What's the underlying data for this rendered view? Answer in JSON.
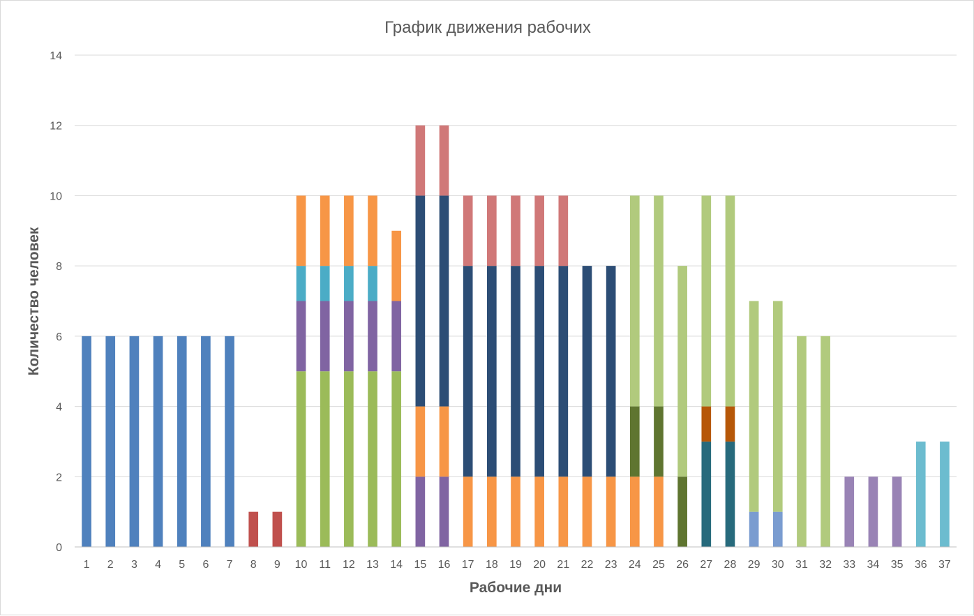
{
  "chart_data": {
    "type": "bar",
    "stacked": true,
    "title": "График движения рабочих",
    "xlabel": "Рабочие дни",
    "ylabel": "Количество человек",
    "ylim": [
      0,
      14
    ],
    "yticks": [
      0,
      2,
      4,
      6,
      8,
      10,
      12,
      14
    ],
    "grid": true,
    "legend": "none",
    "categories": [
      "1",
      "2",
      "3",
      "4",
      "5",
      "6",
      "7",
      "8",
      "9",
      "10",
      "11",
      "12",
      "13",
      "14",
      "15",
      "16",
      "17",
      "18",
      "19",
      "20",
      "21",
      "22",
      "23",
      "24",
      "25",
      "26",
      "27",
      "28",
      "29",
      "30",
      "31",
      "32",
      "33",
      "34",
      "35",
      "36",
      "37"
    ],
    "bars": [
      [
        {
          "v": 6,
          "c": "#4f81bd"
        }
      ],
      [
        {
          "v": 6,
          "c": "#4f81bd"
        }
      ],
      [
        {
          "v": 6,
          "c": "#4f81bd"
        }
      ],
      [
        {
          "v": 6,
          "c": "#4f81bd"
        }
      ],
      [
        {
          "v": 6,
          "c": "#4f81bd"
        }
      ],
      [
        {
          "v": 6,
          "c": "#4f81bd"
        }
      ],
      [
        {
          "v": 6,
          "c": "#4f81bd"
        }
      ],
      [
        {
          "v": 1,
          "c": "#c0504d"
        }
      ],
      [
        {
          "v": 1,
          "c": "#c0504d"
        }
      ],
      [
        {
          "v": 5,
          "c": "#9bbb59"
        },
        {
          "v": 2,
          "c": "#8064a2"
        },
        {
          "v": 1,
          "c": "#4bacc6"
        },
        {
          "v": 2,
          "c": "#f79646"
        }
      ],
      [
        {
          "v": 5,
          "c": "#9bbb59"
        },
        {
          "v": 2,
          "c": "#8064a2"
        },
        {
          "v": 1,
          "c": "#4bacc6"
        },
        {
          "v": 2,
          "c": "#f79646"
        }
      ],
      [
        {
          "v": 5,
          "c": "#9bbb59"
        },
        {
          "v": 2,
          "c": "#8064a2"
        },
        {
          "v": 1,
          "c": "#4bacc6"
        },
        {
          "v": 2,
          "c": "#f79646"
        }
      ],
      [
        {
          "v": 5,
          "c": "#9bbb59"
        },
        {
          "v": 2,
          "c": "#8064a2"
        },
        {
          "v": 1,
          "c": "#4bacc6"
        },
        {
          "v": 2,
          "c": "#f79646"
        }
      ],
      [
        {
          "v": 5,
          "c": "#9bbb59"
        },
        {
          "v": 2,
          "c": "#8064a2"
        },
        {
          "v": 2,
          "c": "#f79646"
        }
      ],
      [
        {
          "v": 2,
          "c": "#8064a2"
        },
        {
          "v": 2,
          "c": "#f79646"
        },
        {
          "v": 6,
          "c": "#2c4d75"
        },
        {
          "v": 2,
          "c": "#d07878"
        }
      ],
      [
        {
          "v": 2,
          "c": "#8064a2"
        },
        {
          "v": 2,
          "c": "#f79646"
        },
        {
          "v": 6,
          "c": "#2c4d75"
        },
        {
          "v": 2,
          "c": "#d07878"
        }
      ],
      [
        {
          "v": 2,
          "c": "#f79646"
        },
        {
          "v": 6,
          "c": "#2c4d75"
        },
        {
          "v": 2,
          "c": "#d07878"
        }
      ],
      [
        {
          "v": 2,
          "c": "#f79646"
        },
        {
          "v": 6,
          "c": "#2c4d75"
        },
        {
          "v": 2,
          "c": "#d07878"
        }
      ],
      [
        {
          "v": 2,
          "c": "#f79646"
        },
        {
          "v": 6,
          "c": "#2c4d75"
        },
        {
          "v": 2,
          "c": "#d07878"
        }
      ],
      [
        {
          "v": 2,
          "c": "#f79646"
        },
        {
          "v": 6,
          "c": "#2c4d75"
        },
        {
          "v": 2,
          "c": "#d07878"
        }
      ],
      [
        {
          "v": 2,
          "c": "#f79646"
        },
        {
          "v": 6,
          "c": "#2c4d75"
        },
        {
          "v": 2,
          "c": "#d07878"
        }
      ],
      [
        {
          "v": 2,
          "c": "#f79646"
        },
        {
          "v": 6,
          "c": "#2c4d75"
        }
      ],
      [
        {
          "v": 2,
          "c": "#f79646"
        },
        {
          "v": 6,
          "c": "#2c4d75"
        }
      ],
      [
        {
          "v": 2,
          "c": "#f79646"
        },
        {
          "v": 2,
          "c": "#5f7530"
        },
        {
          "v": 6,
          "c": "#b1ca7d"
        }
      ],
      [
        {
          "v": 2,
          "c": "#f79646"
        },
        {
          "v": 2,
          "c": "#5f7530"
        },
        {
          "v": 6,
          "c": "#b1ca7d"
        }
      ],
      [
        {
          "v": 2,
          "c": "#5f7530"
        },
        {
          "v": 6,
          "c": "#b1ca7d"
        }
      ],
      [
        {
          "v": 3,
          "c": "#276a7c"
        },
        {
          "v": 1,
          "c": "#b65708"
        },
        {
          "v": 6,
          "c": "#b1ca7d"
        }
      ],
      [
        {
          "v": 3,
          "c": "#276a7c"
        },
        {
          "v": 1,
          "c": "#b65708"
        },
        {
          "v": 6,
          "c": "#b1ca7d"
        }
      ],
      [
        {
          "v": 1,
          "c": "#7a9cd0"
        },
        {
          "v": 6,
          "c": "#b1ca7d"
        }
      ],
      [
        {
          "v": 1,
          "c": "#7a9cd0"
        },
        {
          "v": 6,
          "c": "#b1ca7d"
        }
      ],
      [
        {
          "v": 6,
          "c": "#b1ca7d"
        }
      ],
      [
        {
          "v": 6,
          "c": "#b1ca7d"
        }
      ],
      [
        {
          "v": 2,
          "c": "#9983b5"
        }
      ],
      [
        {
          "v": 2,
          "c": "#9983b5"
        }
      ],
      [
        {
          "v": 2,
          "c": "#9983b5"
        }
      ],
      [
        {
          "v": 3,
          "c": "#6cbccf"
        }
      ],
      [
        {
          "v": 3,
          "c": "#6cbccf"
        }
      ]
    ]
  }
}
